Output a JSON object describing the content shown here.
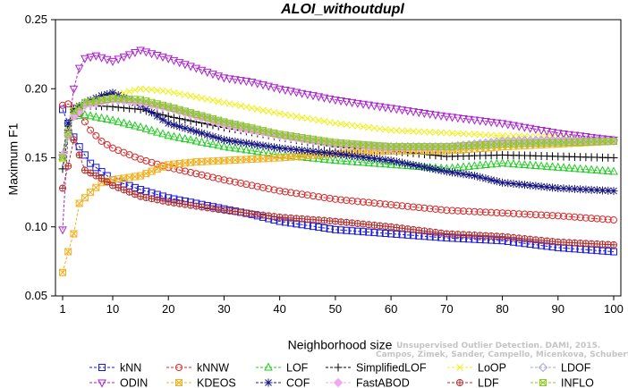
{
  "chart_data": {
    "type": "line",
    "title": "ALOI_withoutdupl",
    "xlabel": "Neighborhood size",
    "ylabel": "Maximum F1",
    "xlim": [
      0,
      100
    ],
    "ylim": [
      0.05,
      0.25
    ],
    "x_ticks": [
      1,
      10,
      20,
      30,
      40,
      50,
      60,
      70,
      80,
      90,
      100
    ],
    "y_ticks": [
      0.05,
      0.1,
      0.15,
      0.2,
      0.25
    ],
    "y_tick_labels": [
      "0.05",
      "0.10",
      "0.15",
      "0.20",
      "0.25"
    ],
    "x_range": [
      1,
      100
    ],
    "series": [
      {
        "name": "kNN",
        "color": "#1a1ad8",
        "marker": "square",
        "points": [
          [
            1,
            0.185
          ],
          [
            2,
            0.175
          ],
          [
            3,
            0.165
          ],
          [
            4,
            0.158
          ],
          [
            6,
            0.146
          ],
          [
            8,
            0.14
          ],
          [
            10,
            0.134
          ],
          [
            15,
            0.127
          ],
          [
            20,
            0.121
          ],
          [
            25,
            0.117
          ],
          [
            30,
            0.113
          ],
          [
            35,
            0.109
          ],
          [
            40,
            0.104
          ],
          [
            50,
            0.098
          ],
          [
            60,
            0.095
          ],
          [
            70,
            0.092
          ],
          [
            80,
            0.09
          ],
          [
            90,
            0.085
          ],
          [
            100,
            0.082
          ]
        ]
      },
      {
        "name": "kNNW",
        "color": "#d82a2a",
        "marker": "circle",
        "points": [
          [
            1,
            0.188
          ],
          [
            2,
            0.189
          ],
          [
            3,
            0.186
          ],
          [
            4,
            0.182
          ],
          [
            6,
            0.17
          ],
          [
            8,
            0.162
          ],
          [
            10,
            0.157
          ],
          [
            15,
            0.149
          ],
          [
            20,
            0.143
          ],
          [
            30,
            0.134
          ],
          [
            40,
            0.126
          ],
          [
            50,
            0.12
          ],
          [
            60,
            0.116
          ],
          [
            70,
            0.112
          ],
          [
            80,
            0.11
          ],
          [
            90,
            0.108
          ],
          [
            100,
            0.105
          ]
        ]
      },
      {
        "name": "LOF",
        "color": "#22cc22",
        "marker": "triangle-up",
        "points": [
          [
            1,
            0.151
          ],
          [
            2,
            0.172
          ],
          [
            3,
            0.18
          ],
          [
            5,
            0.181
          ],
          [
            10,
            0.177
          ],
          [
            15,
            0.172
          ],
          [
            20,
            0.166
          ],
          [
            30,
            0.158
          ],
          [
            40,
            0.152
          ],
          [
            50,
            0.148
          ],
          [
            60,
            0.145
          ],
          [
            70,
            0.142
          ],
          [
            80,
            0.146
          ],
          [
            90,
            0.143
          ],
          [
            100,
            0.14
          ]
        ]
      },
      {
        "name": "SimplifiedLOF",
        "color": "#000000",
        "marker": "plus",
        "points": [
          [
            1,
            0.142
          ],
          [
            2,
            0.168
          ],
          [
            3,
            0.183
          ],
          [
            5,
            0.188
          ],
          [
            10,
            0.187
          ],
          [
            15,
            0.185
          ],
          [
            20,
            0.18
          ],
          [
            30,
            0.172
          ],
          [
            40,
            0.165
          ],
          [
            50,
            0.158
          ],
          [
            60,
            0.155
          ],
          [
            70,
            0.151
          ],
          [
            80,
            0.152
          ],
          [
            90,
            0.151
          ],
          [
            100,
            0.15
          ]
        ]
      },
      {
        "name": "LoOP",
        "color": "#f0f020",
        "marker": "cross",
        "points": [
          [
            1,
            0.149
          ],
          [
            2,
            0.17
          ],
          [
            3,
            0.185
          ],
          [
            5,
            0.19
          ],
          [
            10,
            0.195
          ],
          [
            15,
            0.2
          ],
          [
            20,
            0.198
          ],
          [
            30,
            0.19
          ],
          [
            40,
            0.182
          ],
          [
            50,
            0.175
          ],
          [
            60,
            0.17
          ],
          [
            70,
            0.168
          ],
          [
            80,
            0.166
          ],
          [
            90,
            0.165
          ],
          [
            100,
            0.163
          ]
        ]
      },
      {
        "name": "LDOF",
        "color": "#a8a8e0",
        "marker": "diamond",
        "points": [
          [
            1,
            0.152
          ],
          [
            3,
            0.18
          ],
          [
            5,
            0.188
          ],
          [
            10,
            0.192
          ],
          [
            15,
            0.19
          ],
          [
            20,
            0.186
          ],
          [
            30,
            0.175
          ],
          [
            40,
            0.166
          ],
          [
            50,
            0.16
          ],
          [
            60,
            0.158
          ],
          [
            70,
            0.158
          ],
          [
            80,
            0.162
          ],
          [
            90,
            0.163
          ],
          [
            100,
            0.163
          ]
        ]
      },
      {
        "name": "ODIN",
        "color": "#aa22cc",
        "marker": "triangle-down",
        "points": [
          [
            1,
            0.098
          ],
          [
            2,
            0.168
          ],
          [
            3,
            0.2
          ],
          [
            4,
            0.215
          ],
          [
            5,
            0.222
          ],
          [
            7,
            0.224
          ],
          [
            10,
            0.22
          ],
          [
            15,
            0.228
          ],
          [
            20,
            0.222
          ],
          [
            25,
            0.215
          ],
          [
            30,
            0.208
          ],
          [
            35,
            0.205
          ],
          [
            40,
            0.2
          ],
          [
            50,
            0.192
          ],
          [
            60,
            0.186
          ],
          [
            70,
            0.18
          ],
          [
            80,
            0.175
          ],
          [
            90,
            0.168
          ],
          [
            100,
            0.163
          ]
        ]
      },
      {
        "name": "KDEOS",
        "color": "#f0b020",
        "marker": "square-x",
        "points": [
          [
            1,
            0.067
          ],
          [
            2,
            0.082
          ],
          [
            3,
            0.095
          ],
          [
            4,
            0.117
          ],
          [
            6,
            0.125
          ],
          [
            8,
            0.132
          ],
          [
            10,
            0.134
          ],
          [
            15,
            0.137
          ],
          [
            20,
            0.145
          ],
          [
            25,
            0.147
          ],
          [
            30,
            0.148
          ],
          [
            40,
            0.15
          ],
          [
            50,
            0.153
          ],
          [
            60,
            0.155
          ],
          [
            70,
            0.155
          ],
          [
            80,
            0.158
          ],
          [
            90,
            0.16
          ],
          [
            100,
            0.162
          ]
        ]
      },
      {
        "name": "COF",
        "color": "#141480",
        "marker": "star",
        "points": [
          [
            1,
            0.152
          ],
          [
            2,
            0.175
          ],
          [
            3,
            0.185
          ],
          [
            5,
            0.19
          ],
          [
            8,
            0.195
          ],
          [
            10,
            0.197
          ],
          [
            15,
            0.188
          ],
          [
            20,
            0.175
          ],
          [
            30,
            0.163
          ],
          [
            40,
            0.157
          ],
          [
            50,
            0.153
          ],
          [
            60,
            0.148
          ],
          [
            70,
            0.14
          ],
          [
            75,
            0.137
          ],
          [
            80,
            0.132
          ],
          [
            90,
            0.128
          ],
          [
            100,
            0.126
          ]
        ]
      },
      {
        "name": "FastABOD",
        "color": "#f0a8f0",
        "marker": "diamond-filled",
        "points": [
          [
            1,
            0.152
          ],
          [
            3,
            0.18
          ],
          [
            5,
            0.188
          ],
          [
            10,
            0.192
          ],
          [
            15,
            0.19
          ],
          [
            20,
            0.186
          ],
          [
            30,
            0.174
          ],
          [
            40,
            0.166
          ],
          [
            50,
            0.16
          ],
          [
            60,
            0.157
          ],
          [
            70,
            0.158
          ],
          [
            80,
            0.161
          ],
          [
            90,
            0.162
          ],
          [
            100,
            0.162
          ]
        ]
      },
      {
        "name": "LDF",
        "color": "#b03030",
        "marker": "circle-plus",
        "points": [
          [
            1,
            0.128
          ],
          [
            2,
            0.144
          ],
          [
            3,
            0.163
          ],
          [
            5,
            0.141
          ],
          [
            8,
            0.135
          ],
          [
            10,
            0.13
          ],
          [
            15,
            0.122
          ],
          [
            20,
            0.118
          ],
          [
            25,
            0.115
          ],
          [
            30,
            0.112
          ],
          [
            40,
            0.107
          ],
          [
            50,
            0.104
          ],
          [
            60,
            0.1
          ],
          [
            70,
            0.095
          ],
          [
            80,
            0.093
          ],
          [
            90,
            0.089
          ],
          [
            100,
            0.087
          ]
        ]
      },
      {
        "name": "INFLO",
        "color": "#88cc22",
        "marker": "square-x",
        "points": [
          [
            1,
            0.15
          ],
          [
            3,
            0.184
          ],
          [
            5,
            0.19
          ],
          [
            10,
            0.193
          ],
          [
            15,
            0.192
          ],
          [
            20,
            0.187
          ],
          [
            30,
            0.176
          ],
          [
            40,
            0.167
          ],
          [
            50,
            0.161
          ],
          [
            60,
            0.158
          ],
          [
            70,
            0.158
          ],
          [
            80,
            0.16
          ],
          [
            90,
            0.161
          ],
          [
            100,
            0.162
          ]
        ]
      }
    ],
    "legend_placement": "bottom",
    "grid": false
  },
  "watermark": {
    "line1": "Unsupervised Outlier Detection. DAMI, 2015.",
    "line2": "Campos, Zimek, Sander, Campello, Micenkova, Schubert, Assent, Houle"
  }
}
